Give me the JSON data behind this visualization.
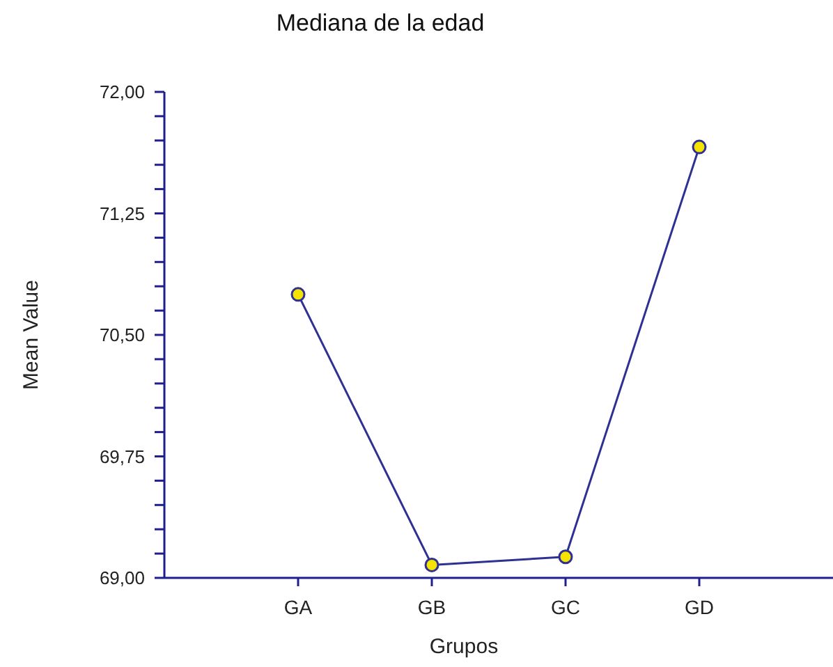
{
  "chart_data": {
    "type": "line",
    "title": "Mediana de la edad",
    "xlabel": "Grupos",
    "ylabel": "Mean Value",
    "categories": [
      "GA",
      "GB",
      "GC",
      "GD"
    ],
    "series": [
      {
        "color": "#2e3192",
        "values": [
          70.75,
          69.08,
          69.13,
          71.66
        ]
      }
    ],
    "ylim": [
      69,
      72
    ],
    "yticks": [
      {
        "value": 69,
        "label": "69,00"
      },
      {
        "value": 69.15,
        "label": null
      },
      {
        "value": 69.3,
        "label": null
      },
      {
        "value": 69.45,
        "label": null
      },
      {
        "value": 69.6,
        "label": null
      },
      {
        "value": 69.75,
        "label": "69,75"
      },
      {
        "value": 69.9,
        "label": null
      },
      {
        "value": 70.05,
        "label": null
      },
      {
        "value": 70.2,
        "label": null
      },
      {
        "value": 70.35,
        "label": null
      },
      {
        "value": 70.5,
        "label": "70,50"
      },
      {
        "value": 70.65,
        "label": null
      },
      {
        "value": 70.8,
        "label": null
      },
      {
        "value": 70.95,
        "label": null
      },
      {
        "value": 71.1,
        "label": null
      },
      {
        "value": 71.25,
        "label": "71,25"
      },
      {
        "value": 71.4,
        "label": null
      },
      {
        "value": 71.55,
        "label": null
      },
      {
        "value": 71.7,
        "label": null
      },
      {
        "value": 71.85,
        "label": null
      },
      {
        "value": 72,
        "label": "72,00"
      }
    ],
    "grid": false,
    "marker": "circle",
    "line_style": "solid"
  }
}
